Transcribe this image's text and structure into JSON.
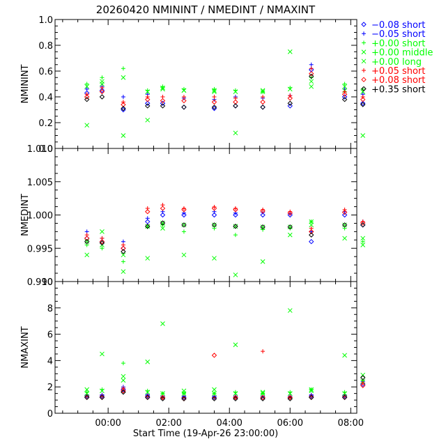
{
  "chart_data": {
    "type": "scatter",
    "title": "20260420 NMININT / NMEDINT / NMAXINT",
    "xlabel": "Start Time (19-Apr-26 23:00:00)",
    "x_unit": "hours since 19-Apr-26 23:00:00",
    "xlim": [
      -0.75,
      9.2
    ],
    "xticks": [
      {
        "value": 1,
        "label": "00:00"
      },
      {
        "value": 3,
        "label": "02:00"
      },
      {
        "value": 5,
        "label": "04:00"
      },
      {
        "value": 7,
        "label": "06:00"
      },
      {
        "value": 9,
        "label": "08:00"
      }
    ],
    "legend": {
      "position": "top-right",
      "entries": [
        {
          "symbol": "diamond",
          "label": "−0.08 short",
          "color": "#0000ff"
        },
        {
          "symbol": "plus",
          "label": "−0.05 short",
          "color": "#0000ff"
        },
        {
          "symbol": "plus",
          "label": "+0.00 short",
          "color": "#00ff00"
        },
        {
          "symbol": "cross",
          "label": "+0.00 middle",
          "color": "#00ff00"
        },
        {
          "symbol": "cross",
          "label": "+0.00 long",
          "color": "#00ff00"
        },
        {
          "symbol": "plus",
          "label": "+0.05 short",
          "color": "#ff0000"
        },
        {
          "symbol": "diamond",
          "label": "+0.08 short",
          "color": "#ff0000"
        },
        {
          "symbol": "diamond",
          "label": "+0.35 short",
          "color": "#000000"
        }
      ]
    },
    "panels": [
      {
        "ylabel": "NMININT",
        "ylim": [
          0.0,
          1.0
        ],
        "ytick_labels": [
          "0.0",
          "0.2",
          "0.4",
          "0.6",
          "0.8",
          "1.0"
        ],
        "series": [
          {
            "name": "−0.08 short",
            "x": [
              0.3,
              0.8,
              1.5,
              2.3,
              2.8,
              3.5,
              4.5,
              5.2,
              6.1,
              7.0,
              7.7,
              8.8,
              9.4
            ],
            "y": [
              0.43,
              0.45,
              0.3,
              0.35,
              0.35,
              0.32,
              0.31,
              0.33,
              0.32,
              0.33,
              0.61,
              0.4,
              0.35
            ]
          },
          {
            "name": "−0.05 short",
            "x": [
              0.3,
              0.8,
              1.5,
              2.3,
              2.8,
              3.5,
              4.5,
              5.2,
              6.1,
              7.0,
              7.7,
              8.8,
              9.4
            ],
            "y": [
              0.46,
              0.48,
              0.4,
              0.42,
              0.4,
              0.39,
              0.38,
              0.4,
              0.39,
              0.41,
              0.65,
              0.46,
              0.42
            ]
          },
          {
            "name": "+0.00 short",
            "x": [
              0.3,
              0.8,
              1.5,
              2.3,
              2.8,
              3.5,
              4.5,
              5.2,
              6.1,
              7.0,
              7.7,
              8.8,
              9.4
            ],
            "y": [
              0.5,
              0.55,
              0.62,
              0.45,
              0.48,
              0.46,
              0.46,
              0.45,
              0.44,
              0.47,
              0.55,
              0.5,
              0.46
            ]
          },
          {
            "name": "+0.00 middle",
            "x": [
              0.3,
              0.8,
              1.5,
              2.3,
              2.8,
              3.5,
              4.5,
              5.2,
              6.1,
              7.0,
              7.7,
              8.8,
              9.4
            ],
            "y": [
              0.18,
              0.52,
              0.1,
              0.22,
              0.47,
              0.45,
              0.45,
              0.12,
              0.45,
              0.75,
              0.48,
              0.45,
              0.1
            ]
          },
          {
            "name": "+0.00 long",
            "x": [
              0.3,
              0.8,
              1.5,
              2.3,
              2.8,
              3.5,
              4.5,
              5.2,
              6.1,
              7.0,
              7.7,
              8.8,
              9.4
            ],
            "y": [
              0.48,
              0.5,
              0.55,
              0.44,
              0.46,
              0.45,
              0.44,
              0.44,
              0.44,
              0.46,
              0.52,
              0.48,
              0.44
            ]
          },
          {
            "name": "+0.05 short",
            "x": [
              0.3,
              0.8,
              1.5,
              2.3,
              2.8,
              3.5,
              4.5,
              5.2,
              6.1,
              7.0,
              7.7,
              8.8,
              9.4
            ],
            "y": [
              0.42,
              0.47,
              0.36,
              0.4,
              0.4,
              0.4,
              0.4,
              0.39,
              0.4,
              0.41,
              0.62,
              0.44,
              0.4
            ]
          },
          {
            "name": "+0.08 short",
            "x": [
              0.3,
              0.8,
              1.5,
              2.3,
              2.8,
              3.5,
              4.5,
              5.2,
              6.1,
              7.0,
              7.7,
              8.8,
              9.4
            ],
            "y": [
              0.4,
              0.44,
              0.34,
              0.38,
              0.37,
              0.37,
              0.36,
              0.36,
              0.36,
              0.39,
              0.58,
              0.42,
              0.38
            ]
          },
          {
            "name": "+0.35 short",
            "x": [
              0.3,
              0.8,
              1.5,
              2.3,
              2.8,
              3.5,
              4.5,
              5.2,
              6.1,
              7.0,
              7.7,
              8.8,
              9.4
            ],
            "y": [
              0.38,
              0.4,
              0.31,
              0.33,
              0.33,
              0.32,
              0.32,
              0.33,
              0.32,
              0.35,
              0.56,
              0.38,
              0.34
            ]
          }
        ]
      },
      {
        "ylabel": "NMEDINT",
        "ylim": [
          0.99,
          1.01
        ],
        "ytick_labels": [
          "0.990",
          "0.995",
          "1.000",
          "1.005",
          "1.010"
        ],
        "series": [
          {
            "name": "−0.08 short",
            "x": [
              0.3,
              0.8,
              1.5,
              2.3,
              2.8,
              3.5,
              4.5,
              5.2,
              6.1,
              7.0,
              7.7,
              8.8,
              9.4
            ],
            "y": [
              0.9965,
              0.996,
              0.995,
              0.999,
              1.0,
              1.0,
              1.0,
              1.0,
              1.0,
              1.0,
              0.996,
              1.0,
              0.9985
            ]
          },
          {
            "name": "−0.05 short",
            "x": [
              0.3,
              0.8,
              1.5,
              2.3,
              2.8,
              3.5,
              4.5,
              5.2,
              6.1,
              7.0,
              7.7,
              8.8,
              9.4
            ],
            "y": [
              0.9975,
              0.9965,
              0.996,
              0.9995,
              1.0005,
              1.0003,
              1.0005,
              1.0003,
              1.0004,
              1.0002,
              0.9975,
              1.0005,
              0.999
            ]
          },
          {
            "name": "+0.00 short",
            "x": [
              0.3,
              0.8,
              1.5,
              2.3,
              2.8,
              3.5,
              4.5,
              5.2,
              6.1,
              7.0,
              7.7,
              8.8,
              9.4
            ],
            "y": [
              0.9955,
              0.995,
              0.993,
              0.9982,
              0.9985,
              0.9975,
              0.998,
              0.997,
              0.9978,
              0.998,
              0.999,
              0.998,
              0.996
            ]
          },
          {
            "name": "+0.00 middle",
            "x": [
              0.3,
              0.8,
              1.5,
              2.3,
              2.8,
              3.5,
              4.5,
              5.2,
              6.1,
              7.0,
              7.7,
              8.8,
              9.4
            ],
            "y": [
              0.994,
              0.9975,
              0.9915,
              0.9935,
              0.998,
              0.994,
              0.9935,
              0.991,
              0.993,
              0.997,
              0.999,
              0.9965,
              0.9955
            ]
          },
          {
            "name": "+0.00 long",
            "x": [
              0.3,
              0.8,
              1.5,
              2.3,
              2.8,
              3.5,
              4.5,
              5.2,
              6.1,
              7.0,
              7.7,
              8.8,
              9.4
            ],
            "y": [
              0.996,
              0.9955,
              0.994,
              0.9983,
              0.9988,
              0.9985,
              0.9985,
              0.9983,
              0.9982,
              0.9982,
              0.9985,
              0.9985,
              0.9965
            ]
          },
          {
            "name": "+0.05 short",
            "x": [
              0.3,
              0.8,
              1.5,
              2.3,
              2.8,
              3.5,
              4.5,
              5.2,
              6.1,
              7.0,
              7.7,
              8.8,
              9.4
            ],
            "y": [
              0.997,
              0.9965,
              0.9955,
              1.001,
              1.0015,
              1.001,
              1.0012,
              1.001,
              1.0008,
              1.0005,
              0.998,
              1.0008,
              0.999
            ]
          },
          {
            "name": "+0.08 short",
            "x": [
              0.3,
              0.8,
              1.5,
              2.3,
              2.8,
              3.5,
              4.5,
              5.2,
              6.1,
              7.0,
              7.7,
              8.8,
              9.4
            ],
            "y": [
              0.9965,
              0.996,
              0.995,
              1.0005,
              1.001,
              1.0008,
              1.001,
              1.0008,
              1.0006,
              1.0003,
              0.9975,
              1.0004,
              0.9988
            ]
          },
          {
            "name": "+0.35 short",
            "x": [
              0.3,
              0.8,
              1.5,
              2.3,
              2.8,
              3.5,
              4.5,
              5.2,
              6.1,
              7.0,
              7.7,
              8.8,
              9.4
            ],
            "y": [
              0.996,
              0.9958,
              0.9945,
              0.9983,
              0.9988,
              0.9985,
              0.9985,
              0.9983,
              0.9982,
              0.9982,
              0.997,
              0.9985,
              0.9985
            ]
          }
        ]
      },
      {
        "ylabel": "NMAXINT",
        "ylim": [
          0,
          10
        ],
        "ytick_labels": [
          "0",
          "2",
          "4",
          "6",
          "8",
          "10"
        ],
        "series": [
          {
            "name": "−0.08 short",
            "x": [
              0.3,
              0.8,
              1.5,
              2.3,
              2.8,
              3.5,
              4.5,
              5.2,
              6.1,
              7.0,
              7.7,
              8.8,
              9.4
            ],
            "y": [
              1.3,
              1.3,
              1.8,
              1.3,
              1.2,
              1.2,
              1.2,
              1.2,
              1.2,
              1.2,
              1.3,
              1.3,
              2.2
            ]
          },
          {
            "name": "−0.05 short",
            "x": [
              0.3,
              0.8,
              1.5,
              2.3,
              2.8,
              3.5,
              4.5,
              5.2,
              6.1,
              7.0,
              7.7,
              8.8,
              9.4
            ],
            "y": [
              1.4,
              1.4,
              2.0,
              1.4,
              1.3,
              1.3,
              1.3,
              1.3,
              1.3,
              1.3,
              1.4,
              1.4,
              2.4
            ]
          },
          {
            "name": "+0.00 short",
            "x": [
              0.3,
              0.8,
              1.5,
              2.3,
              2.8,
              3.5,
              4.5,
              5.2,
              6.1,
              7.0,
              7.7,
              8.8,
              9.4
            ],
            "y": [
              1.6,
              1.8,
              3.8,
              1.7,
              1.5,
              1.5,
              1.5,
              1.6,
              1.5,
              1.6,
              1.8,
              1.6,
              2.5
            ]
          },
          {
            "name": "+0.00 middle",
            "x": [
              0.3,
              0.8,
              1.5,
              2.3,
              2.8,
              3.5,
              4.5,
              5.2,
              6.1,
              7.0,
              7.7,
              8.8,
              9.4
            ],
            "y": [
              1.8,
              4.5,
              2.5,
              3.9,
              6.8,
              1.7,
              1.8,
              5.2,
              1.6,
              7.8,
              1.8,
              4.4,
              2.9
            ]
          },
          {
            "name": "+0.00 long",
            "x": [
              0.3,
              0.8,
              1.5,
              2.3,
              2.8,
              3.5,
              4.5,
              5.2,
              6.1,
              7.0,
              7.7,
              8.8,
              9.4
            ],
            "y": [
              1.5,
              1.7,
              2.8,
              1.6,
              1.5,
              1.5,
              1.5,
              1.5,
              1.5,
              1.5,
              1.7,
              1.5,
              2.4
            ]
          },
          {
            "name": "+0.05 short",
            "x": [
              0.3,
              0.8,
              1.5,
              2.3,
              2.8,
              3.5,
              4.5,
              5.2,
              6.1,
              7.0,
              7.7,
              8.8,
              9.4
            ],
            "y": [
              1.3,
              1.3,
              1.9,
              1.3,
              1.2,
              1.2,
              1.2,
              1.2,
              4.7,
              1.2,
              1.3,
              1.3,
              2.3
            ]
          },
          {
            "name": "+0.08 short",
            "x": [
              0.3,
              0.8,
              1.5,
              2.3,
              2.8,
              3.5,
              4.5,
              5.2,
              6.1,
              7.0,
              7.7,
              8.8,
              9.4
            ],
            "y": [
              1.2,
              1.2,
              1.7,
              1.2,
              1.2,
              1.1,
              4.4,
              1.2,
              1.2,
              1.2,
              1.2,
              1.2,
              2.1
            ]
          },
          {
            "name": "+0.35 short",
            "x": [
              0.3,
              0.8,
              1.5,
              2.3,
              2.8,
              3.5,
              4.5,
              5.2,
              6.1,
              7.0,
              7.7,
              8.8,
              9.4
            ],
            "y": [
              1.2,
              1.2,
              1.6,
              1.2,
              1.1,
              1.1,
              1.1,
              1.1,
              1.1,
              1.1,
              1.2,
              1.2,
              2.7
            ]
          }
        ]
      }
    ]
  }
}
